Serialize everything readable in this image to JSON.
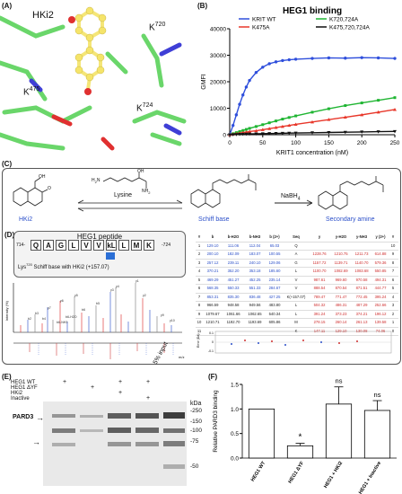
{
  "panels": {
    "A": "(A)",
    "B": "(B)",
    "C": "(C)",
    "D": "(D)",
    "E": "(E)",
    "F": "(F)"
  },
  "structure": {
    "hki2": "HKi2",
    "k720": "K",
    "k720_sup": "720",
    "k475": "K",
    "k475_sup": "475",
    "k724": "K",
    "k724_sup": "724"
  },
  "chart_b": {
    "title": "HEG1 binding",
    "ylabel": "GMFI",
    "xlabel": "KRIT1 concentration (nM)",
    "legend": [
      {
        "name": "KRIT WT",
        "color": "#2f4fdc"
      },
      {
        "name": "K720,724A",
        "color": "#1fb532"
      },
      {
        "name": "K475A",
        "color": "#e8372a"
      },
      {
        "name": "K475,720,724A",
        "color": "#111111"
      }
    ]
  },
  "chart_data": {
    "type": "line",
    "title": "HEG1 binding",
    "xlabel": "KRIT1 concentration (nM)",
    "ylabel": "GMFI",
    "xlim": [
      0,
      250
    ],
    "ylim": [
      0,
      40000
    ],
    "xticks": [
      "0",
      "50",
      "100",
      "150",
      "200",
      "250"
    ],
    "yticks": [
      "0",
      "10000",
      "20000",
      "30000",
      "40000"
    ],
    "series": [
      {
        "name": "KRIT WT",
        "color": "#2f4fdc",
        "x": [
          0,
          5,
          10,
          15,
          20,
          25,
          30,
          40,
          50,
          60,
          70,
          80,
          90,
          100,
          125,
          150,
          175,
          200,
          225,
          250
        ],
        "y": [
          0,
          3500,
          7500,
          11500,
          15000,
          18000,
          20500,
          23500,
          25500,
          26800,
          27500,
          28000,
          28300,
          28500,
          28800,
          29000,
          28900,
          29100,
          29000,
          28800
        ]
      },
      {
        "name": "K720,724A",
        "color": "#1fb532",
        "x": [
          0,
          5,
          10,
          15,
          20,
          25,
          30,
          40,
          50,
          60,
          70,
          80,
          90,
          100,
          125,
          150,
          175,
          200,
          225,
          250
        ],
        "y": [
          0,
          400,
          800,
          1200,
          1600,
          2000,
          2400,
          3100,
          3800,
          4500,
          5200,
          5900,
          6500,
          7100,
          8500,
          9800,
          11000,
          12000,
          13000,
          14000
        ]
      },
      {
        "name": "K475A",
        "color": "#e8372a",
        "x": [
          0,
          5,
          10,
          15,
          20,
          25,
          30,
          40,
          50,
          60,
          70,
          80,
          90,
          100,
          125,
          150,
          175,
          200,
          225,
          250
        ],
        "y": [
          0,
          200,
          400,
          600,
          800,
          1000,
          1200,
          1500,
          1900,
          2300,
          2700,
          3100,
          3500,
          3900,
          4800,
          5700,
          6600,
          7500,
          8500,
          9500
        ]
      },
      {
        "name": "K475,720,724A",
        "color": "#111111",
        "x": [
          0,
          5,
          10,
          15,
          20,
          25,
          30,
          40,
          50,
          60,
          70,
          80,
          90,
          100,
          125,
          150,
          175,
          200,
          225,
          250
        ],
        "y": [
          0,
          50,
          100,
          150,
          200,
          250,
          300,
          350,
          400,
          450,
          500,
          550,
          600,
          650,
          750,
          850,
          950,
          1050,
          1150,
          1250
        ]
      }
    ]
  },
  "scheme_c": {
    "lysine": "Lysine",
    "nabh4": "NaBH",
    "nabh4_sub": "4",
    "hki2": "HKi2",
    "schiff": "Schiff base",
    "amine": "Secondary amine",
    "oh": "OH",
    "nh2": "NH",
    "nh2_sub": "2",
    "h2n": "H",
    "h2n_mid": "2",
    "h2n_end": "N",
    "oh_acid": "OH",
    "o_label": "O"
  },
  "spectrum_d": {
    "peptide_title": "HEG1 peptide",
    "prefix": "714-",
    "suffix": "-724",
    "residues": [
      "Q",
      "A",
      "G",
      "L",
      "V",
      "V",
      "kL",
      "L",
      "M",
      "K"
    ],
    "modified_note": "Lys",
    "modified_sup": "720",
    "modified_rest": " Schiff base with HKi2 (+157.07)",
    "y_axis": "Intensity (%)",
    "x_axis": "m/z",
    "table_headers": [
      "#",
      "b",
      "b-H2O",
      "b-NH3",
      "b (2+)",
      "Seq",
      "y",
      "y-H2O",
      "y-NH3",
      "y (2+)",
      "#"
    ],
    "table_rows": [
      [
        "1",
        "129.10",
        "111.06",
        "112.04",
        "65.03",
        "Q",
        "",
        "",
        "",
        "",
        "10"
      ],
      [
        "2",
        "200.10",
        "182.09",
        "183.07",
        "100.55",
        "A",
        "1228.76",
        "1210.75",
        "1211.73",
        "614.88",
        "9"
      ],
      [
        "3",
        "257.12",
        "239.11",
        "240.10",
        "129.06",
        "G",
        "1157.72",
        "1139.71",
        "1140.70",
        "579.36",
        "8"
      ],
      [
        "4",
        "370.21",
        "352.20",
        "353.18",
        "185.60",
        "L",
        "1100.70",
        "1082.69",
        "1083.68",
        "550.85",
        "7"
      ],
      [
        "5",
        "469.29",
        "451.27",
        "452.25",
        "235.14",
        "V",
        "987.61",
        "969.60",
        "970.58",
        "494.31",
        "6"
      ],
      [
        "6",
        "568.35",
        "550.33",
        "551.33",
        "284.67",
        "V",
        "888.54",
        "870.54",
        "871.51",
        "444.77",
        "5"
      ],
      [
        "7",
        "853.31",
        "835.30",
        "836.48",
        "427.25",
        "K(+157.07)",
        "789.47",
        "771.47",
        "772.45",
        "395.24",
        "4"
      ],
      [
        "8",
        "966.59",
        "948.58",
        "949.56",
        "483.80",
        "L",
        "504.32",
        "486.31",
        "487.29",
        "252.66",
        "3"
      ],
      [
        "9",
        "1079.67",
        "1061.66",
        "1062.65",
        "540.34",
        "L",
        "391.24",
        "373.23",
        "374.21",
        "196.12",
        "2"
      ],
      [
        "10",
        "1210.71",
        "1192.70",
        "1193.69",
        "605.86",
        "M",
        "278.15",
        "260.14",
        "261.13",
        "139.58",
        "1"
      ],
      [
        "11",
        "",
        "",
        "",
        "",
        "K",
        "147.11",
        "129.10",
        "130.08",
        "74.06",
        "0"
      ]
    ],
    "err_label": "Error (Da)",
    "err_ticks": [
      "0.1",
      "0",
      "-0.1"
    ],
    "ion_labels": [
      "y1",
      "y2",
      "y3",
      "y4",
      "y5",
      "y6",
      "y7",
      "b5",
      "b6",
      "b4",
      "b3",
      "b2",
      "b6-H2O",
      "b6-NH3",
      "y9",
      "y10"
    ]
  },
  "blot_e": {
    "rows": [
      {
        "label": "HEG1 WT",
        "marks": [
          "+",
          "",
          "+",
          "+",
          ""
        ]
      },
      {
        "label": "HEG1 ΔYF",
        "marks": [
          "",
          "+",
          "",
          "",
          ""
        ]
      },
      {
        "label": "HKi2",
        "marks": [
          "",
          "",
          "+",
          "",
          ""
        ]
      },
      {
        "label": "Inactive",
        "marks": [
          "",
          "",
          "",
          "+",
          ""
        ]
      }
    ],
    "input_label": "5% input",
    "protein": "PARD3",
    "kda_label": "kDa",
    "markers": [
      "-250",
      "-150",
      "-100",
      "-75",
      "-50"
    ]
  },
  "chart_f": {
    "ylabel": "Relative PARD3 binding",
    "categories": [
      "HEG1 WT",
      "HEG1 ΔYF",
      "HEG1 + HKi2",
      "HEG1 + Inactive"
    ],
    "significance": [
      "",
      "*",
      "ns",
      "ns"
    ],
    "yticks": [
      "0.0",
      "0.5",
      "1.0",
      "1.5"
    ]
  },
  "chart_data_f": {
    "type": "bar",
    "categories": [
      "HEG1 WT",
      "HEG1 ΔYF",
      "HEG1 + HKi2",
      "HEG1 + Inactive"
    ],
    "values": [
      1.0,
      0.25,
      1.1,
      0.97
    ],
    "errors": [
      0.0,
      0.05,
      0.35,
      0.2
    ],
    "ylabel": "Relative PARD3 binding",
    "ylim": [
      0,
      1.5
    ]
  }
}
